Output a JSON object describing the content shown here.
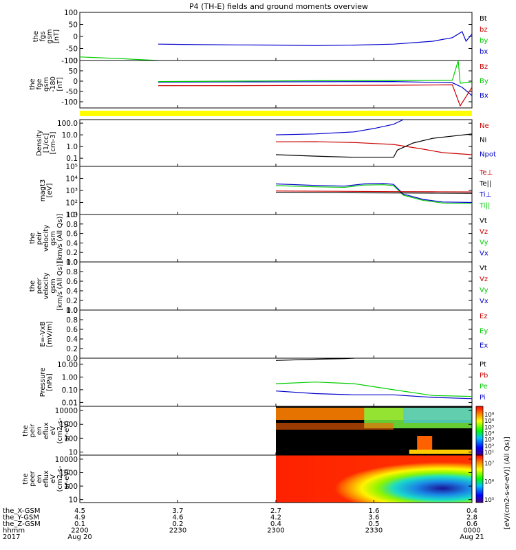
{
  "title": "P4 (TH-E) fields and ground moments overview",
  "colors": {
    "black": "#000000",
    "red": "#cc0000",
    "green": "#00cc00",
    "blue": "#0000cc",
    "yellow": "#ffff00"
  },
  "chart_data": {
    "type": "line",
    "title": "P4 (TH-E) fields and ground moments overview",
    "panels": [
      {
        "id": "fgs",
        "ylabel": [
          "the",
          "fgs",
          "gsm",
          "[nT]"
        ],
        "scale": "linear",
        "ylim": [
          -100,
          100
        ],
        "ticks": [
          "100",
          "50",
          "0",
          "-50",
          "-100"
        ],
        "tick_values": [
          100,
          50,
          0,
          -50,
          -100
        ],
        "legend": [
          {
            "label": "Bt",
            "color": "#000000"
          },
          {
            "label": "bz",
            "color": "#cc0000"
          },
          {
            "label": "by",
            "color": "#00cc00"
          },
          {
            "label": "bx",
            "color": "#0000cc"
          }
        ],
        "series": [
          {
            "name": "bx",
            "color": "#0000cc",
            "x": [
              22.4,
              22.6,
              22.8,
              23.0,
              23.2,
              23.4,
              23.6,
              23.8,
              23.9,
              23.95,
              23.97,
              24.0
            ],
            "y": [
              -32,
              -34,
              -35,
              -36,
              -38,
              -36,
              -32,
              -20,
              -5,
              20,
              -20,
              10
            ]
          },
          {
            "name": "by",
            "color": "#00cc00",
            "x": [
              22.0,
              22.2,
              22.4
            ],
            "y": [
              -85,
              -92,
              -100
            ]
          }
        ]
      },
      {
        "id": "fge",
        "ylabel": [
          "the",
          "fge",
          "gsm",
          "-180",
          "[nT]"
        ],
        "scale": "linear",
        "ylim": [
          -130,
          100
        ],
        "ticks": [
          "100",
          "50",
          "0",
          "-50",
          "-100"
        ],
        "tick_values": [
          100,
          50,
          0,
          -50,
          -100
        ],
        "legend": [
          {
            "label": "Bz",
            "color": "#cc0000"
          },
          {
            "label": "By",
            "color": "#00cc00"
          },
          {
            "label": "Bx",
            "color": "#0000cc"
          }
        ],
        "series": [
          {
            "name": "Bx",
            "color": "#0000cc",
            "x": [
              22.4,
              22.8,
              23.2,
              23.6,
              23.9,
              23.95,
              24.0
            ],
            "y": [
              -5,
              -4,
              -3,
              -2,
              -8,
              -30,
              -70
            ]
          },
          {
            "name": "By",
            "color": "#00cc00",
            "x": [
              22.4,
              22.8,
              23.2,
              23.6,
              23.9,
              23.93,
              23.94,
              24.0
            ],
            "y": [
              -2,
              0,
              2,
              3,
              4,
              100,
              -10,
              -5
            ]
          },
          {
            "name": "Bz",
            "color": "#cc0000",
            "x": [
              22.4,
              22.8,
              23.2,
              23.6,
              23.9,
              23.94,
              24.0
            ],
            "y": [
              -22,
              -22,
              -21,
              -20,
              -18,
              -120,
              -30
            ]
          }
        ]
      },
      {
        "id": "density",
        "ylabel": [
          "Density",
          "[1/cc]",
          "[cm-3]"
        ],
        "scale": "log",
        "ylim": [
          0.02,
          200
        ],
        "ticks": [
          "100.0",
          "10.0",
          "1.0",
          "0.1"
        ],
        "tick_values": [
          100,
          10,
          1,
          0.1
        ],
        "legend": [
          {
            "label": "Ne",
            "color": "#cc0000"
          },
          {
            "label": "Ni",
            "color": "#000000"
          },
          {
            "label": "Npot",
            "color": "#0000cc"
          }
        ],
        "series": [
          {
            "name": "Npot",
            "color": "#0000cc",
            "x": [
              23.0,
              23.2,
              23.4,
              23.5,
              23.6,
              23.65
            ],
            "y": [
              10,
              12,
              18,
              35,
              80,
              200
            ]
          },
          {
            "name": "Ne",
            "color": "#cc0000",
            "x": [
              23.0,
              23.2,
              23.4,
              23.6,
              23.75,
              23.85,
              24.0
            ],
            "y": [
              2.5,
              2.6,
              2.2,
              1.5,
              0.6,
              0.3,
              0.2
            ]
          },
          {
            "name": "Ni",
            "color": "#000000",
            "x": [
              23.0,
              23.2,
              23.4,
              23.6,
              23.62,
              23.7,
              23.8,
              24.0
            ],
            "y": [
              0.2,
              0.15,
              0.12,
              0.12,
              0.5,
              2,
              5,
              12
            ]
          }
        ]
      },
      {
        "id": "magt3",
        "ylabel": [
          "magt3",
          "[eV]"
        ],
        "scale": "log",
        "ylim": [
          10,
          100000
        ],
        "ticks": [
          "10⁵",
          "10⁴",
          "10³",
          "10²",
          "10¹"
        ],
        "tick_values": [
          100000,
          10000,
          1000,
          100,
          10
        ],
        "legend": [
          {
            "label": "Te⊥",
            "color": "#cc0000"
          },
          {
            "label": "Te||",
            "color": "#000000"
          },
          {
            "label": "Ti⊥",
            "color": "#0000cc"
          },
          {
            "label": "Ti||",
            "color": "#00cc00"
          }
        ],
        "series": [
          {
            "name": "Ti||",
            "color": "#00cc00",
            "x": [
              23.0,
              23.2,
              23.35,
              23.45,
              23.55,
              23.6,
              23.65,
              23.75,
              23.85,
              24.0
            ],
            "y": [
              2500,
              2000,
              1800,
              2800,
              3000,
              2500,
              400,
              150,
              90,
              80
            ]
          },
          {
            "name": "Ti⊥",
            "color": "#0000cc",
            "x": [
              23.0,
              23.2,
              23.35,
              23.45,
              23.55,
              23.6,
              23.65,
              23.75,
              23.85,
              24.0
            ],
            "y": [
              3500,
              2600,
              2300,
              3500,
              3800,
              3200,
              500,
              180,
              110,
              100
            ]
          },
          {
            "name": "Te||",
            "color": "#000000",
            "x": [
              23.0,
              23.3,
              23.6,
              23.8,
              24.0
            ],
            "y": [
              700,
              650,
              620,
              600,
              580
            ]
          },
          {
            "name": "Te⊥",
            "color": "#cc0000",
            "x": [
              23.0,
              23.3,
              23.6,
              23.8,
              24.0
            ],
            "y": [
              900,
              850,
              800,
              780,
              760
            ]
          }
        ]
      },
      {
        "id": "peir-velocity",
        "ylabel": [
          "the",
          "peir",
          "velocity",
          "gsm",
          "[km/s (All Qs)]"
        ],
        "scale": "linear",
        "ylim": [
          0,
          1
        ],
        "ticks": [
          "1.0",
          "0.8",
          "0.6",
          "0.4",
          "0.2",
          "0.0"
        ],
        "tick_values": [
          1.0,
          0.8,
          0.6,
          0.4,
          0.2,
          0.0
        ],
        "legend": [
          {
            "label": "Vt",
            "color": "#000000"
          },
          {
            "label": "Vz",
            "color": "#cc0000"
          },
          {
            "label": "Vy",
            "color": "#00cc00"
          },
          {
            "label": "Vx",
            "color": "#0000cc"
          }
        ],
        "series": []
      },
      {
        "id": "peer-velocity",
        "ylabel": [
          "the",
          "peer",
          "velocity",
          "gsm",
          "[km/s (All Qs)]"
        ],
        "scale": "linear",
        "ylim": [
          0,
          1
        ],
        "ticks": [
          "1.0",
          "0.8",
          "0.6",
          "0.4",
          "0.2",
          "0.0"
        ],
        "tick_values": [
          1.0,
          0.8,
          0.6,
          0.4,
          0.2,
          0.0
        ],
        "legend": [
          {
            "label": "Vt",
            "color": "#000000"
          },
          {
            "label": "Vz",
            "color": "#cc0000"
          },
          {
            "label": "Vy",
            "color": "#00cc00"
          },
          {
            "label": "Vx",
            "color": "#0000cc"
          }
        ],
        "series": []
      },
      {
        "id": "e-field",
        "ylabel": [
          "E=-VxB",
          "[mV/m]"
        ],
        "scale": "linear",
        "ylim": [
          0,
          1
        ],
        "ticks": [
          "1.0",
          "0.8",
          "0.6",
          "0.4",
          "0.2",
          "0.0"
        ],
        "tick_values": [
          1.0,
          0.8,
          0.6,
          0.4,
          0.2,
          0.0
        ],
        "legend": [
          {
            "label": "Ez",
            "color": "#cc0000"
          },
          {
            "label": "Ey",
            "color": "#00cc00"
          },
          {
            "label": "Ex",
            "color": "#0000cc"
          }
        ],
        "series": []
      },
      {
        "id": "pressure",
        "ylabel": [
          "Pressure",
          "[nPa]"
        ],
        "scale": "log",
        "ylim": [
          0.005,
          30
        ],
        "ticks": [
          "10.00",
          "1.00",
          "0.10",
          "0.01"
        ],
        "tick_values": [
          10,
          1,
          0.1,
          0.01
        ],
        "legend": [
          {
            "label": "Pt",
            "color": "#000000"
          },
          {
            "label": "Pb",
            "color": "#cc0000"
          },
          {
            "label": "Pe",
            "color": "#00cc00"
          },
          {
            "label": "Pi",
            "color": "#0000cc"
          }
        ],
        "series": [
          {
            "name": "Pt",
            "color": "#000000",
            "x": [
              23.0,
              23.2,
              23.35,
              23.4
            ],
            "y": [
              20,
              25,
              28,
              30
            ]
          },
          {
            "name": "Pe",
            "color": "#00cc00",
            "x": [
              23.0,
              23.2,
              23.4,
              23.6,
              23.8,
              24.0
            ],
            "y": [
              0.3,
              0.4,
              0.3,
              0.1,
              0.035,
              0.03
            ]
          },
          {
            "name": "Pi",
            "color": "#0000cc",
            "x": [
              23.0,
              23.2,
              23.4,
              23.6,
              23.8,
              24.0
            ],
            "y": [
              0.08,
              0.05,
              0.04,
              0.04,
              0.025,
              0.02
            ]
          }
        ]
      },
      {
        "id": "peir-eflux",
        "ylabel": [
          "the",
          "peir",
          "en",
          "eflux",
          "eV",
          "(cm2-s-",
          "sr-eV)"
        ],
        "scale": "log",
        "type": "heatmap",
        "ylim": [
          6,
          20000
        ],
        "ticks": [
          "10000",
          "1000",
          "100",
          "10"
        ],
        "tick_values": [
          10000,
          1000,
          100,
          10
        ],
        "colorbar": {
          "label": "[eV/(cm2-s-sr-eV)]",
          "ticks": [
            "10⁸",
            "10⁶",
            "10⁵",
            "10⁴",
            "10³",
            "10²",
            "10¹"
          ]
        }
      },
      {
        "id": "peer-eflux",
        "ylabel": [
          "the",
          "peer",
          "en",
          "eflux",
          "eV",
          "(cm2-s-",
          "sr-eV)"
        ],
        "scale": "log",
        "type": "heatmap",
        "ylim": [
          6,
          20000
        ],
        "ticks": [
          "10000",
          "1000",
          "100",
          "10"
        ],
        "tick_values": [
          10000,
          1000,
          100,
          10
        ],
        "colorbar": {
          "label": "[eV/(cm2-s-sr-eV)]",
          "ticks": [
            "10⁷",
            "10⁶",
            "10⁵"
          ]
        }
      }
    ],
    "x_axis": {
      "xlim": [
        22.0,
        24.0
      ],
      "rows": [
        {
          "label": "the_X-GSM",
          "values": [
            "4.5",
            "3.7",
            "2.7",
            "1.6",
            "0.4"
          ]
        },
        {
          "label": "the_Y-GSM",
          "values": [
            "4.9",
            "4.6",
            "4.2",
            "3.6",
            "2.8"
          ]
        },
        {
          "label": "the_Z-GSM",
          "values": [
            "0.1",
            "0.2",
            "0.4",
            "0.5",
            "0.6"
          ]
        },
        {
          "label": "hhmm",
          "values": [
            "2200",
            "2230",
            "2300",
            "2330",
            "0000"
          ]
        },
        {
          "label": "2017",
          "values": [
            "Aug 20",
            "",
            "",
            "",
            "Aug 21"
          ]
        }
      ],
      "tick_hours": [
        22.0,
        22.5,
        23.0,
        23.5,
        24.0
      ]
    },
    "right_axis_label": "[eV/(cm2-s-sr-eV)] (All Qs)]"
  }
}
